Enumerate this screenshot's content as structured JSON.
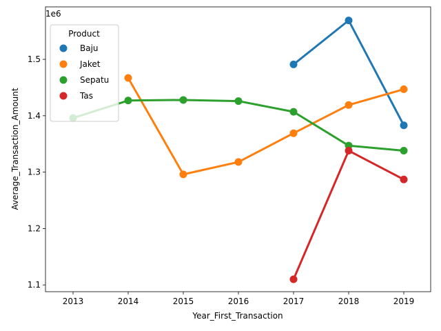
{
  "chart_data": {
    "type": "line",
    "xlabel": "Year_First_Transaction",
    "ylabel": "Average_Transaction_Amount",
    "offset_label": "1e6",
    "x": [
      "2013",
      "2014",
      "2015",
      "2016",
      "2017",
      "2018",
      "2019"
    ],
    "yticks": [
      "1.1",
      "1.2",
      "1.3",
      "1.4",
      "1.5"
    ],
    "ylim": [
      1.088,
      1.593
    ],
    "legend": {
      "title": "Product",
      "location": "upper-left"
    },
    "series": [
      {
        "name": "Baju",
        "color": "#1f77b4",
        "values": [
          null,
          null,
          null,
          null,
          1.491,
          1.569,
          1.383
        ]
      },
      {
        "name": "Jaket",
        "color": "#ff7f0e",
        "values": [
          null,
          1.467,
          1.296,
          1.318,
          1.369,
          1.419,
          1.447
        ]
      },
      {
        "name": "Sepatu",
        "color": "#2ca02c",
        "values": [
          1.396,
          1.427,
          1.428,
          1.426,
          1.407,
          1.347,
          1.338
        ]
      },
      {
        "name": "Tas",
        "color": "#d62728",
        "values": [
          null,
          null,
          null,
          null,
          1.11,
          1.338,
          1.287
        ]
      }
    ]
  }
}
